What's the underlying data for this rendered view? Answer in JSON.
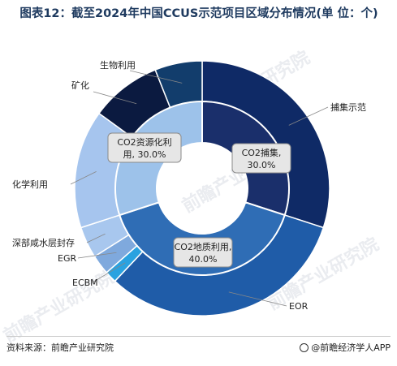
{
  "title": "图表12：截至2024年中国CCUS示范项目区域分布情况(单 位：个)",
  "footer": {
    "source": "资料来源：前瞻产业研究院",
    "brand": "@前瞻经济学人APP"
  },
  "watermark": "前瞻产业研究院",
  "chart_data": {
    "type": "pie",
    "inner_ring": [
      {
        "name": "CO2捕集,",
        "pct": "30.0%",
        "value": 30.0,
        "color": "#1a2f6b"
      },
      {
        "name": "CO2地质利用,",
        "pct": "40.0%",
        "value": 40.0,
        "color": "#2f6db5"
      },
      {
        "name": "CO2资源化利",
        "name2": "用, 30.0%",
        "value": 30.0,
        "color": "#9dc2ea"
      }
    ],
    "outer_ring": [
      {
        "name": "捕集示范",
        "value": 30.0,
        "color": "#0f2a66"
      },
      {
        "name": "EOR",
        "value": 32.0,
        "color": "#1f5ca8"
      },
      {
        "name": "ECBM",
        "value": 1.5,
        "color": "#2aa2e0"
      },
      {
        "name": "EGR",
        "value": 2.5,
        "color": "#7fa9dd"
      },
      {
        "name": "深部咸水层封存",
        "value": 4.0,
        "color": "#a8c7ee"
      },
      {
        "name": "化学利用",
        "value": 15.0,
        "color": "#a6c5ee"
      },
      {
        "name": "矿化",
        "value": 9.0,
        "color": "#0b1a40"
      },
      {
        "name": "生物利用",
        "value": 6.0,
        "color": "#123d6c"
      }
    ]
  }
}
